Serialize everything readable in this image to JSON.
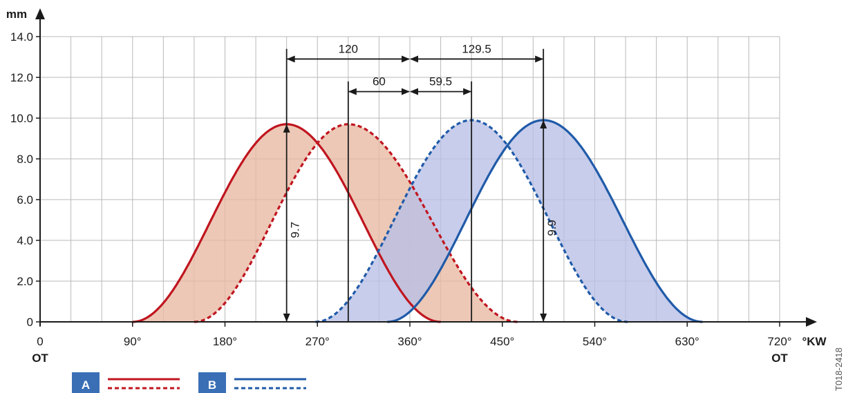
{
  "chart_data": {
    "type": "area",
    "xlabel": "°KW",
    "ylabel": "mm",
    "xlim": [
      0,
      720
    ],
    "ylim": [
      0,
      14
    ],
    "grid": true,
    "x_ticks": [
      {
        "value": 0,
        "label": "0",
        "sublabel": "OT"
      },
      {
        "value": 90,
        "label": "90°",
        "sublabel": ""
      },
      {
        "value": 180,
        "label": "180°",
        "sublabel": ""
      },
      {
        "value": 270,
        "label": "270°",
        "sublabel": ""
      },
      {
        "value": 360,
        "label": "360°",
        "sublabel": ""
      },
      {
        "value": 450,
        "label": "450°",
        "sublabel": ""
      },
      {
        "value": 540,
        "label": "540°",
        "sublabel": ""
      },
      {
        "value": 630,
        "label": "630°",
        "sublabel": ""
      },
      {
        "value": 720,
        "label": "720°",
        "sublabel": "OT"
      }
    ],
    "y_ticks": [
      {
        "value": 0,
        "label": "0"
      },
      {
        "value": 2,
        "label": "2.0"
      },
      {
        "value": 4,
        "label": "4.0"
      },
      {
        "value": 6,
        "label": "6.0"
      },
      {
        "value": 8,
        "label": "8.0"
      },
      {
        "value": 10,
        "label": "10.0"
      },
      {
        "value": 12,
        "label": "12.0"
      },
      {
        "value": 14,
        "label": "14.0"
      }
    ],
    "series": [
      {
        "group": "A",
        "style": "solid",
        "color": "#c0151f",
        "peak_x": 240,
        "peak_y": 9.7,
        "start_x": 90,
        "end_x": 390
      },
      {
        "group": "A",
        "style": "dashed",
        "color": "#c0151f",
        "peak_x": 300,
        "peak_y": 9.7,
        "start_x": 150,
        "end_x": 465
      },
      {
        "group": "B",
        "style": "dashed",
        "color": "#1f5aa8",
        "peak_x": 420,
        "peak_y": 9.9,
        "start_x": 268,
        "end_x": 572
      },
      {
        "group": "B",
        "style": "solid",
        "color": "#1f5aa8",
        "peak_x": 490,
        "peak_y": 9.9,
        "start_x": 338,
        "end_x": 645
      }
    ],
    "fills": [
      {
        "group": "A",
        "color": "#e8b9a2"
      },
      {
        "group": "B",
        "color": "#b7bfe6"
      }
    ],
    "dimensions": [
      {
        "label": "120",
        "x1": 240,
        "x2": 360,
        "y": 12.9
      },
      {
        "label": "129.5",
        "x1": 360,
        "x2": 490,
        "y": 12.9
      },
      {
        "label": "60",
        "x1": 300,
        "x2": 360,
        "y": 11.3
      },
      {
        "label": "59.5",
        "x1": 360,
        "x2": 420,
        "y": 11.3
      }
    ],
    "lift_annotations": [
      {
        "label": "9.7",
        "x": 240,
        "value": 9.7
      },
      {
        "label": "9.9",
        "x": 490,
        "value": 9.9
      }
    ]
  },
  "legend": [
    {
      "letter": "A",
      "color": "#c0151f",
      "box_color": "#3a6fb6"
    },
    {
      "letter": "B",
      "color": "#1f5aa8",
      "box_color": "#3a6fb6"
    }
  ],
  "doc_id": "T018-2418"
}
